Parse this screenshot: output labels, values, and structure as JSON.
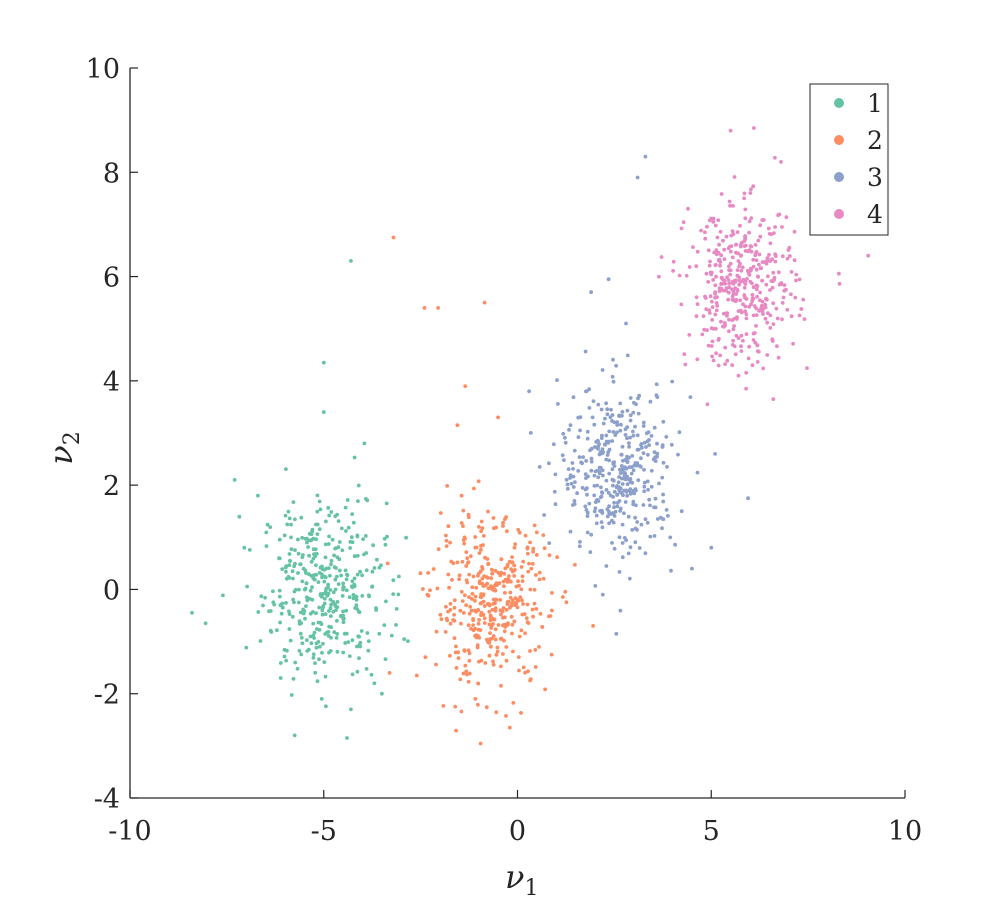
{
  "chart_data": {
    "type": "scatter",
    "title": "",
    "xlabel": "ν",
    "xlabel_sub": "1",
    "ylabel": "ν",
    "ylabel_sub": "2",
    "xlim": [
      -10,
      10
    ],
    "ylim": [
      -4,
      10
    ],
    "xticks": [
      -10,
      -5,
      0,
      5,
      10
    ],
    "xtick_labels": [
      "-10",
      "-5",
      "0",
      "5",
      "10"
    ],
    "yticks": [
      -4,
      -2,
      0,
      2,
      4,
      6,
      8,
      10
    ],
    "ytick_labels": [
      "-4",
      "-2",
      "0",
      "2",
      "4",
      "6",
      "8",
      "10"
    ],
    "grid": false,
    "legend_position": "top-right",
    "points_per_series": 400,
    "series": [
      {
        "name": "1",
        "color": "#66c2a5",
        "center": [
          -5.0,
          0.0
        ],
        "spread": [
          0.8,
          0.85
        ],
        "points": [
          [
            -8.4,
            -0.45
          ],
          [
            -8.05,
            -0.65
          ],
          [
            -7.3,
            2.1
          ],
          [
            -6.7,
            1.8
          ],
          [
            -5.0,
            4.35
          ],
          [
            -4.3,
            6.3
          ],
          [
            -3.95,
            2.8
          ],
          [
            -4.4,
            -2.85
          ],
          [
            -5.75,
            -2.8
          ],
          [
            -3.5,
            -2.0
          ],
          [
            -5.0,
            3.4
          ],
          [
            -4.3,
            -2.3
          ]
        ]
      },
      {
        "name": "2",
        "color": "#fc8d62",
        "center": [
          -0.7,
          -0.3
        ],
        "spread": [
          0.75,
          0.8
        ],
        "points": [
          [
            -3.2,
            6.75
          ],
          [
            -2.4,
            5.4
          ],
          [
            -2.05,
            5.4
          ],
          [
            -0.85,
            5.5
          ],
          [
            -1.35,
            3.9
          ],
          [
            -0.5,
            3.3
          ],
          [
            -0.2,
            -2.65
          ],
          [
            -3.3,
            -1.6
          ],
          [
            -2.6,
            -1.65
          ],
          [
            -1.55,
            3.15
          ],
          [
            1.95,
            -0.7
          ],
          [
            -3.35,
            0.5
          ]
        ]
      },
      {
        "name": "3",
        "color": "#8da0cb",
        "center": [
          2.6,
          2.3
        ],
        "spread": [
          0.75,
          0.8
        ],
        "points": [
          [
            3.3,
            8.3
          ],
          [
            3.1,
            7.9
          ],
          [
            1.9,
            5.7
          ],
          [
            2.8,
            5.1
          ],
          [
            2.35,
            5.95
          ],
          [
            0.3,
            3.8
          ],
          [
            5.0,
            0.8
          ],
          [
            4.5,
            0.4
          ],
          [
            5.1,
            2.6
          ],
          [
            5.95,
            1.75
          ],
          [
            2.2,
            -0.1
          ],
          [
            2.55,
            -0.85
          ]
        ]
      },
      {
        "name": "4",
        "color": "#e78ac3",
        "center": [
          5.8,
          5.8
        ],
        "spread": [
          0.7,
          0.75
        ],
        "points": [
          [
            5.5,
            8.8
          ],
          [
            6.1,
            8.85
          ],
          [
            6.8,
            8.2
          ],
          [
            9.05,
            6.4
          ],
          [
            4.4,
            7.3
          ],
          [
            6.6,
            3.65
          ],
          [
            5.9,
            3.85
          ],
          [
            4.9,
            3.55
          ]
        ]
      }
    ]
  }
}
